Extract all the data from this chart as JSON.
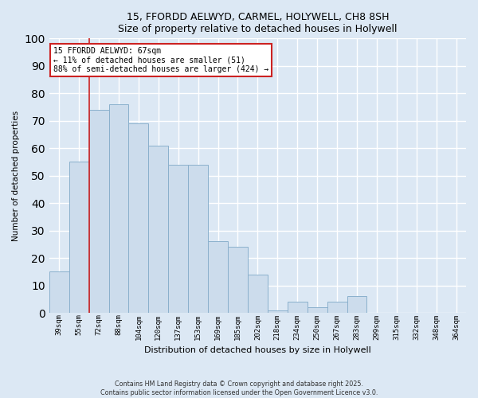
{
  "title": "15, FFORDD AELWYD, CARMEL, HOLYWELL, CH8 8SH",
  "subtitle": "Size of property relative to detached houses in Holywell",
  "xlabel": "Distribution of detached houses by size in Holywell",
  "ylabel": "Number of detached properties",
  "bar_labels": [
    "39sqm",
    "55sqm",
    "72sqm",
    "88sqm",
    "104sqm",
    "120sqm",
    "137sqm",
    "153sqm",
    "169sqm",
    "185sqm",
    "202sqm",
    "218sqm",
    "234sqm",
    "250sqm",
    "267sqm",
    "283sqm",
    "299sqm",
    "315sqm",
    "332sqm",
    "348sqm",
    "364sqm"
  ],
  "bar_values": [
    15,
    55,
    74,
    76,
    69,
    61,
    54,
    54,
    26,
    24,
    14,
    1,
    4,
    2,
    4,
    6,
    0,
    0,
    0,
    0,
    0
  ],
  "bar_color": "#ccdcec",
  "bar_edge_color": "#8ab0cc",
  "ylim": [
    0,
    100
  ],
  "yticks": [
    0,
    10,
    20,
    30,
    40,
    50,
    60,
    70,
    80,
    90,
    100
  ],
  "property_line_x": 1.5,
  "property_line_color": "#cc2222",
  "annotation_title": "15 FFORDD AELWYD: 67sqm",
  "annotation_line1": "← 11% of detached houses are smaller (51)",
  "annotation_line2": "88% of semi-detached houses are larger (424) →",
  "annotation_box_facecolor": "#ffffff",
  "annotation_box_edgecolor": "#cc2222",
  "footer_line1": "Contains HM Land Registry data © Crown copyright and database right 2025.",
  "footer_line2": "Contains public sector information licensed under the Open Government Licence v3.0.",
  "background_color": "#dce8f4",
  "plot_bg_color": "#dce8f4",
  "grid_color": "#ffffff"
}
